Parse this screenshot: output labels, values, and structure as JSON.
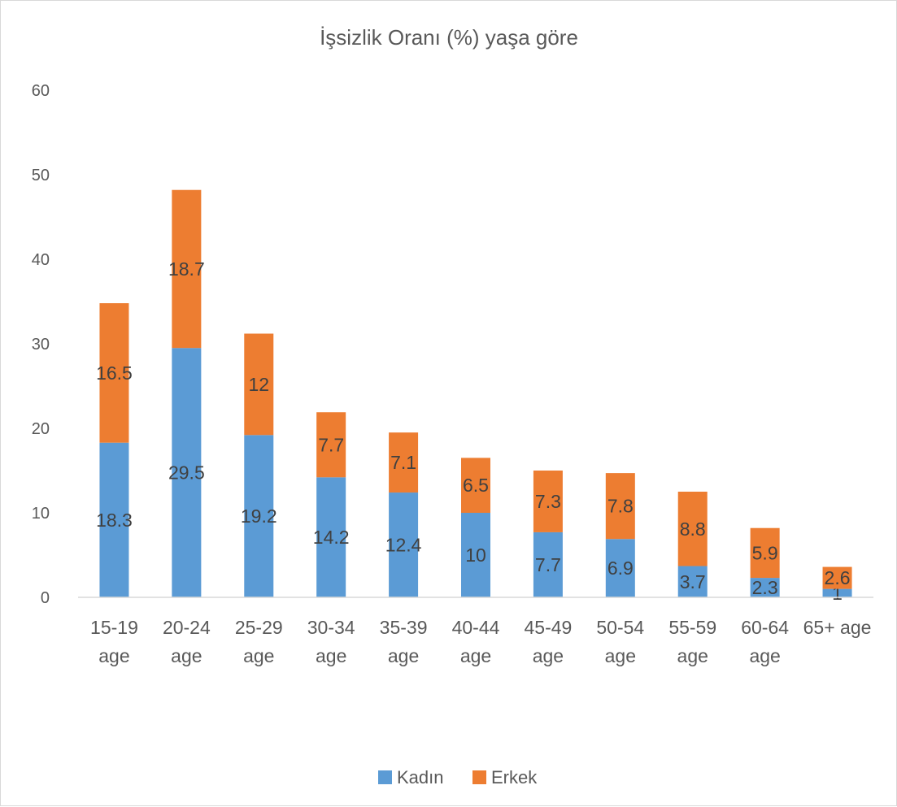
{
  "chart_data": {
    "type": "bar",
    "stacked": true,
    "title": "İşsizlik Oranı (%) yaşa göre",
    "categories": [
      [
        "15-19",
        "age"
      ],
      [
        "20-24",
        "age"
      ],
      [
        "25-29",
        "age"
      ],
      [
        "30-34",
        "age"
      ],
      [
        "35-39",
        "age"
      ],
      [
        "40-44",
        "age"
      ],
      [
        "45-49",
        "age"
      ],
      [
        "50-54",
        "age"
      ],
      [
        "55-59",
        "age"
      ],
      [
        "60-64",
        "age"
      ],
      [
        "65+ age"
      ]
    ],
    "series": [
      {
        "name": "Kadın",
        "color": "#5b9bd5",
        "values": [
          18.3,
          29.5,
          19.2,
          14.2,
          12.4,
          10,
          7.7,
          6.9,
          3.7,
          2.3,
          1
        ]
      },
      {
        "name": "Erkek",
        "color": "#ed7d31",
        "values": [
          16.5,
          18.7,
          12,
          7.7,
          7.1,
          6.5,
          7.3,
          7.8,
          8.8,
          5.9,
          2.6
        ]
      }
    ],
    "ylim": [
      0,
      60
    ],
    "yticks": [
      0,
      10,
      20,
      30,
      40,
      50,
      60
    ],
    "xlabel": "",
    "ylabel": "",
    "grid": false,
    "data_labels": true,
    "legend": "bottom"
  }
}
